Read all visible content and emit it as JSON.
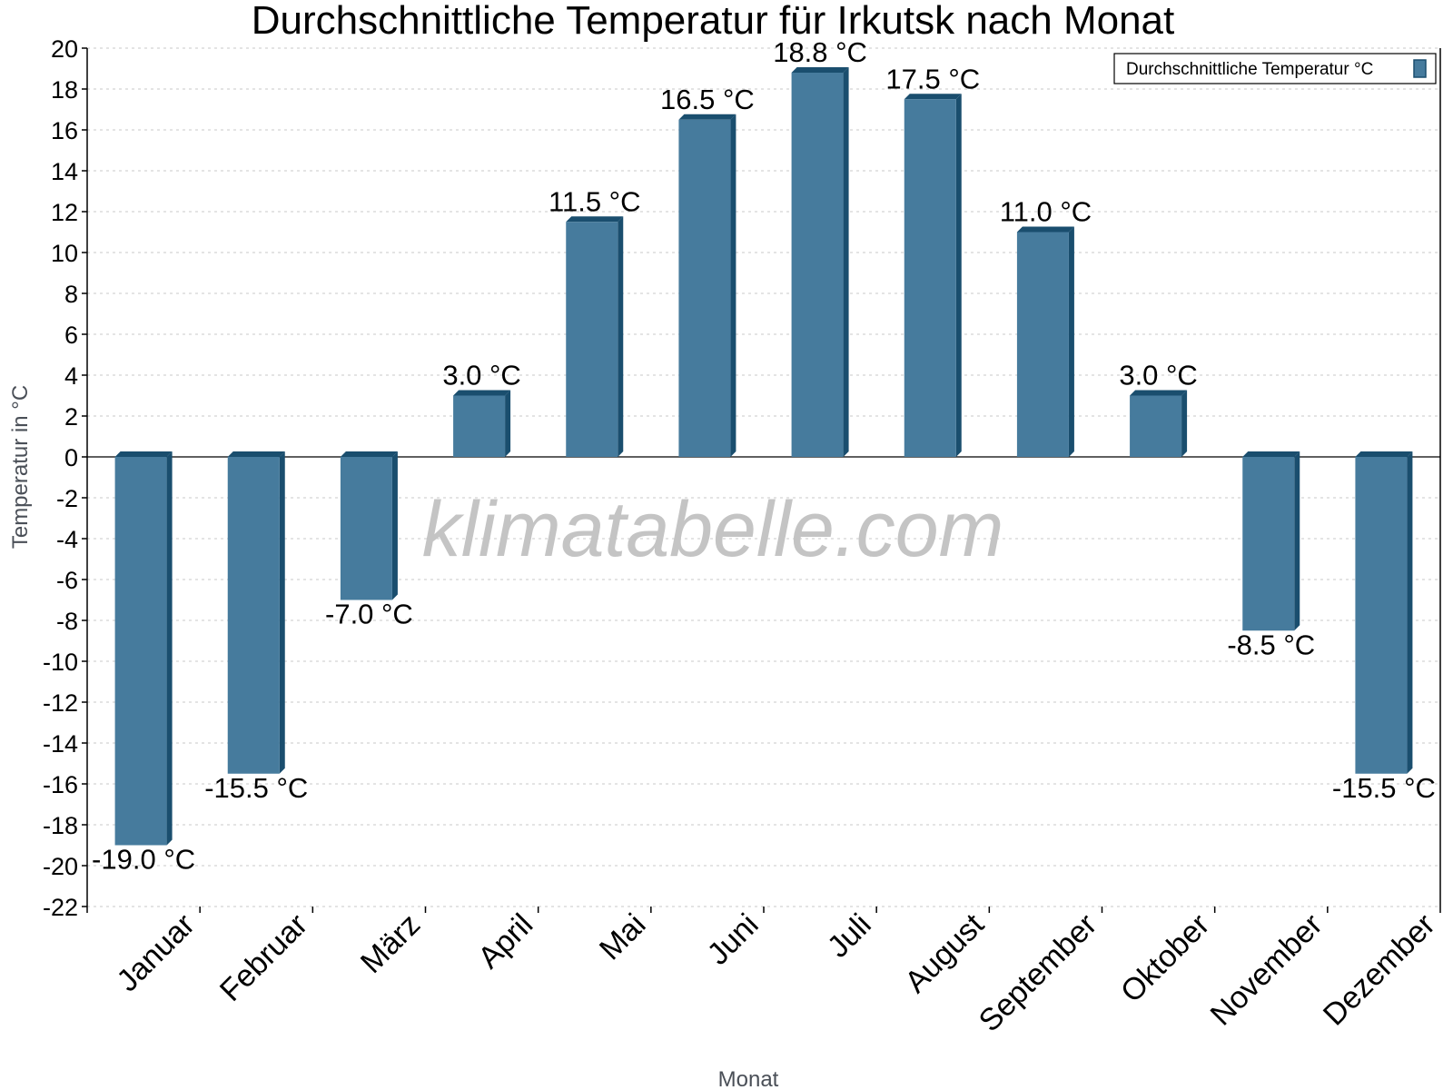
{
  "chart_data": {
    "type": "bar",
    "title": "Durchschnittliche Temperatur für Irkutsk nach Monat",
    "xlabel": "Monat",
    "ylabel": "Temperatur in °C",
    "categories": [
      "Januar",
      "Februar",
      "März",
      "April",
      "Mai",
      "Juni",
      "Juli",
      "August",
      "September",
      "Oktober",
      "November",
      "Dezember"
    ],
    "series": [
      {
        "name": "Durchschnittliche Temperatur °C",
        "color": "#467b9d",
        "shade_color": "#1a4e6e",
        "values": [
          -19.0,
          -15.5,
          -7.0,
          3.0,
          11.5,
          16.5,
          18.8,
          17.5,
          11.0,
          3.0,
          -8.5,
          -15.5
        ]
      }
    ],
    "data_labels": [
      "-19.0 °C",
      "-15.5 °C",
      "-7.0 °C",
      "3.0 °C",
      "11.5 °C",
      "16.5 °C",
      "18.8 °C",
      "17.5 °C",
      "11.0 °C",
      "3.0 °C",
      "-8.5 °C",
      "-15.5 °C"
    ],
    "ylim": [
      -22,
      20
    ],
    "yticks": [
      20,
      18,
      16,
      14,
      12,
      10,
      8,
      6,
      4,
      2,
      0,
      -2,
      -4,
      -6,
      -8,
      -10,
      -12,
      -14,
      -16,
      -18,
      -20,
      -22
    ],
    "grid": true,
    "legend_position": "top-right",
    "watermark": "klimatabelle.com"
  }
}
